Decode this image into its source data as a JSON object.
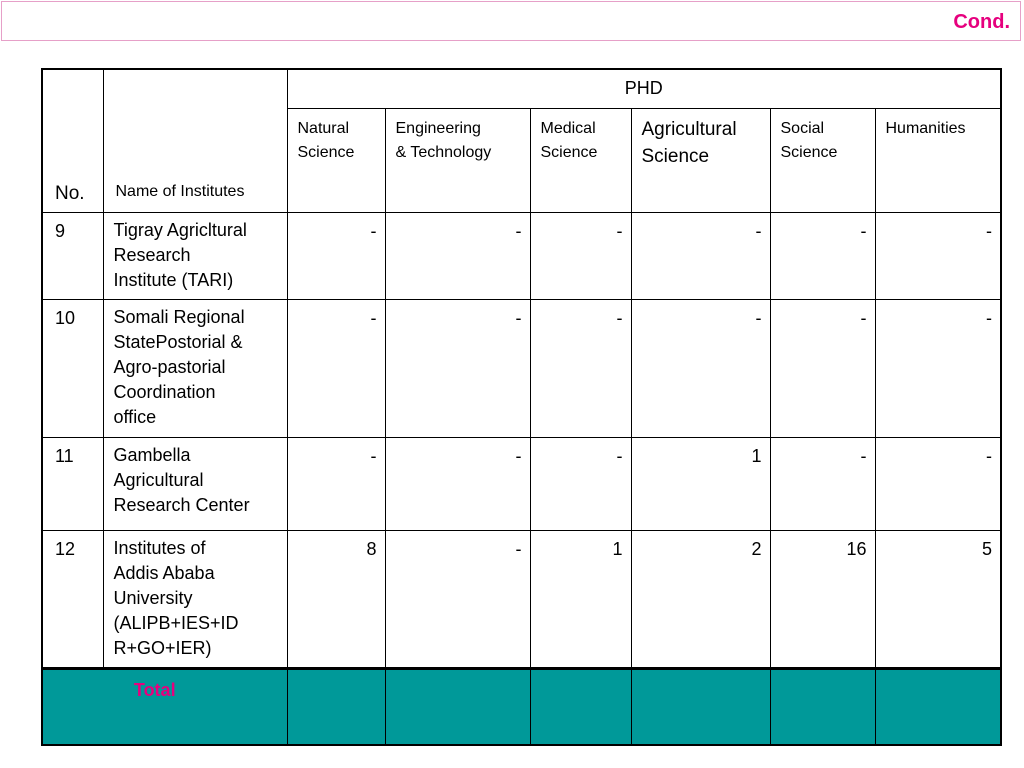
{
  "header": {
    "title": "Cond."
  },
  "table": {
    "col_no": "No.",
    "col_name": "Name of Institutes",
    "group_label": "PHD",
    "sub_columns": [
      {
        "line1": "Natural",
        "line2": "Science"
      },
      {
        "line1": "Engineering",
        "line2": "& Technology"
      },
      {
        "line1": "Medical",
        "line2": "Science"
      },
      {
        "line1": "Agricultural",
        "line2": "Science"
      },
      {
        "line1": "Social",
        "line2": "Science"
      },
      {
        "line1": "Humanities",
        "line2": ""
      }
    ],
    "rows": [
      {
        "no": "9",
        "name_lines": [
          "Tigray Agricltural",
          "Research",
          "Institute (TARI)"
        ],
        "values": [
          "-",
          "-",
          "-",
          "-",
          "-",
          "-"
        ]
      },
      {
        "no": "10",
        "name_lines": [
          "Somali Regional",
          "StatePostorial &",
          "Agro-pastorial",
          "Coordination",
          "office"
        ],
        "values": [
          "-",
          "-",
          "-",
          "-",
          "-",
          "-"
        ]
      },
      {
        "no": "11",
        "name_lines": [
          "Gambella",
          "Agricultural",
          "Research Center"
        ],
        "values": [
          "-",
          "-",
          "-",
          "1",
          "-",
          "-"
        ]
      },
      {
        "no": "12",
        "name_lines": [
          "Institutes of",
          "Addis Ababa",
          "University",
          "(ALIPB+IES+ID",
          "R+GO+IER)"
        ],
        "values": [
          "8",
          "-",
          "1",
          "2",
          "16",
          "5"
        ]
      }
    ],
    "total_label": "Total"
  }
}
